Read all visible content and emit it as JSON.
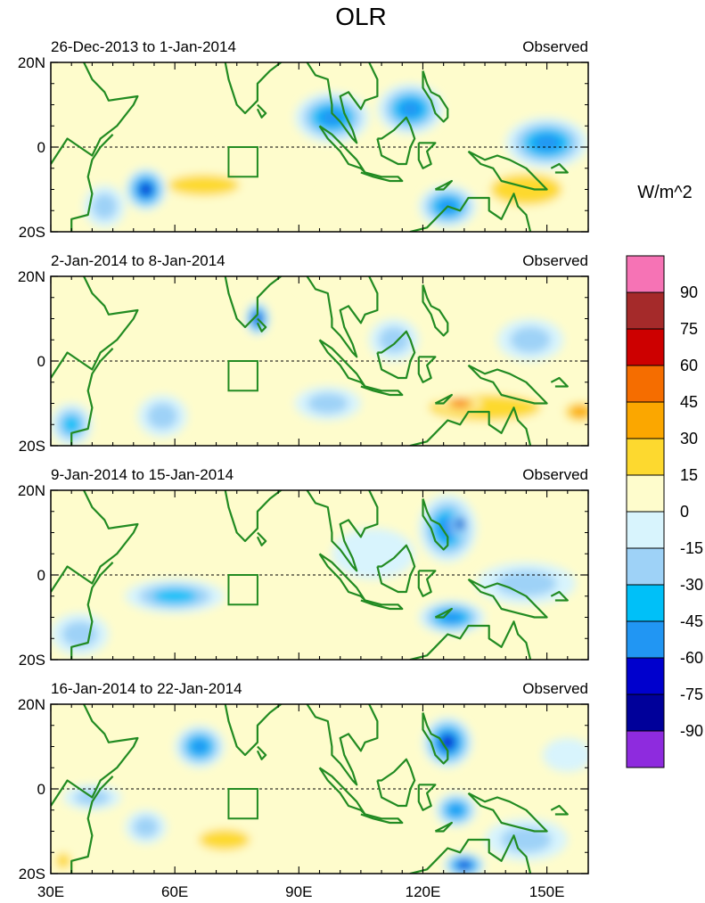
{
  "chart_data": {
    "type": "heatmap",
    "title": "OLR",
    "units_label": "W/m^2",
    "lon_range": [
      30,
      160
    ],
    "lat_range": [
      -20,
      20
    ],
    "x_ticks": [
      {
        "value": 30,
        "label": "30E"
      },
      {
        "value": 60,
        "label": "60E"
      },
      {
        "value": 90,
        "label": "90E"
      },
      {
        "value": 120,
        "label": "120E"
      },
      {
        "value": 150,
        "label": "150E"
      }
    ],
    "y_ticks": [
      {
        "value": 20,
        "label": "20N"
      },
      {
        "value": 0,
        "label": "0"
      },
      {
        "value": -20,
        "label": "20S"
      }
    ],
    "colorbar": {
      "levels": [
        "90",
        "75",
        "60",
        "45",
        "30",
        "15",
        "0",
        "-15",
        "-30",
        "-45",
        "-60",
        "-75",
        "-90"
      ],
      "colors": [
        "#f673b5",
        "#a52a2a",
        "#cd0000",
        "#f56d00",
        "#fba700",
        "#fdd92f",
        "#fefccc",
        "#d8f4fd",
        "#9ed2f7",
        "#00c0f8",
        "#2196f3",
        "#0000cd",
        "#00009a",
        "#8e2bde"
      ]
    },
    "box_region": {
      "lon": [
        73,
        80
      ],
      "lat": [
        -7,
        0
      ]
    },
    "panels": [
      {
        "period": "26-Dec-2013 to 1-Jan-2014",
        "tag": "Observed",
        "anomalies": [
          {
            "lon": 53,
            "lat": -10,
            "rx": 5,
            "ry": 5,
            "value": -75
          },
          {
            "lon": 43,
            "lat": -14,
            "rx": 5,
            "ry": 5,
            "value": -30
          },
          {
            "lon": 67,
            "lat": -9,
            "rx": 14,
            "ry": 4,
            "value": 30
          },
          {
            "lon": 83,
            "lat": -7,
            "rx": 9,
            "ry": 3,
            "value": 15
          },
          {
            "lon": 75,
            "lat": 8,
            "rx": 5,
            "ry": 5,
            "value": 15
          },
          {
            "lon": 98,
            "lat": 7,
            "rx": 9,
            "ry": 6,
            "value": -60
          },
          {
            "lon": 117,
            "lat": 9,
            "rx": 8,
            "ry": 6,
            "value": -60
          },
          {
            "lon": 126,
            "lat": -14,
            "rx": 7,
            "ry": 5,
            "value": -60
          },
          {
            "lon": 145,
            "lat": -10,
            "rx": 14,
            "ry": 6,
            "value": 30
          },
          {
            "lon": 150,
            "lat": 1,
            "rx": 10,
            "ry": 6,
            "value": -60
          },
          {
            "lon": 156,
            "lat": 12,
            "rx": 5,
            "ry": 3,
            "value": 15
          }
        ]
      },
      {
        "period": "2-Jan-2014 to 8-Jan-2014",
        "tag": "Observed",
        "anomalies": [
          {
            "lon": 80,
            "lat": 10,
            "rx": 3,
            "ry": 4,
            "value": -75
          },
          {
            "lon": 68,
            "lat": 5,
            "rx": 10,
            "ry": 4,
            "value": 15
          },
          {
            "lon": 78,
            "lat": -8,
            "rx": 14,
            "ry": 4,
            "value": 15
          },
          {
            "lon": 44,
            "lat": -6,
            "rx": 6,
            "ry": 4,
            "value": 15
          },
          {
            "lon": 57,
            "lat": -13,
            "rx": 6,
            "ry": 5,
            "value": -30
          },
          {
            "lon": 35,
            "lat": -15,
            "rx": 5,
            "ry": 5,
            "value": -45
          },
          {
            "lon": 97,
            "lat": -10,
            "rx": 8,
            "ry": 4,
            "value": -30
          },
          {
            "lon": 135,
            "lat": -11,
            "rx": 22,
            "ry": 5,
            "value": 30
          },
          {
            "lon": 129,
            "lat": -10,
            "rx": 5,
            "ry": 2,
            "value": 60
          },
          {
            "lon": 158,
            "lat": -12,
            "rx": 5,
            "ry": 3,
            "value": 45
          },
          {
            "lon": 113,
            "lat": 5,
            "rx": 6,
            "ry": 5,
            "value": -30
          },
          {
            "lon": 146,
            "lat": 5,
            "rx": 8,
            "ry": 5,
            "value": -30
          },
          {
            "lon": 115,
            "lat": 18,
            "rx": 25,
            "ry": 3,
            "value": 15
          }
        ]
      },
      {
        "period": "9-Jan-2014 to 15-Jan-2014",
        "tag": "Observed",
        "anomalies": [
          {
            "lon": 126,
            "lat": 11,
            "rx": 7,
            "ry": 8,
            "value": -60
          },
          {
            "lon": 129,
            "lat": 12,
            "rx": 2,
            "ry": 3,
            "value": -90
          },
          {
            "lon": 60,
            "lat": -5,
            "rx": 12,
            "ry": 4,
            "value": -45
          },
          {
            "lon": 37,
            "lat": -14,
            "rx": 7,
            "ry": 5,
            "value": -30
          },
          {
            "lon": 85,
            "lat": -8,
            "rx": 22,
            "ry": 4,
            "value": 15
          },
          {
            "lon": 75,
            "lat": 2,
            "rx": 6,
            "ry": 3,
            "value": 15
          },
          {
            "lon": 127,
            "lat": -10,
            "rx": 8,
            "ry": 4,
            "value": -60
          },
          {
            "lon": 145,
            "lat": -2,
            "rx": 12,
            "ry": 5,
            "value": -30
          },
          {
            "lon": 155,
            "lat": -16,
            "rx": 6,
            "ry": 3,
            "value": 15
          },
          {
            "lon": 108,
            "lat": 5,
            "rx": 10,
            "ry": 6,
            "value": -15
          }
        ]
      },
      {
        "period": "16-Jan-2014 to 22-Jan-2014",
        "tag": "Observed",
        "anomalies": [
          {
            "lon": 66,
            "lat": 10,
            "rx": 6,
            "ry": 5,
            "value": -60
          },
          {
            "lon": 126,
            "lat": 11,
            "rx": 6,
            "ry": 6,
            "value": -75
          },
          {
            "lon": 72,
            "lat": -12,
            "rx": 10,
            "ry": 4,
            "value": 30
          },
          {
            "lon": 86,
            "lat": -10,
            "rx": 12,
            "ry": 4,
            "value": 15
          },
          {
            "lon": 53,
            "lat": -9,
            "rx": 5,
            "ry": 4,
            "value": -30
          },
          {
            "lon": 40,
            "lat": -2,
            "rx": 7,
            "ry": 3,
            "value": -30
          },
          {
            "lon": 128,
            "lat": -5,
            "rx": 5,
            "ry": 4,
            "value": -60
          },
          {
            "lon": 130,
            "lat": -18,
            "rx": 5,
            "ry": 3,
            "value": -75
          },
          {
            "lon": 145,
            "lat": -12,
            "rx": 10,
            "ry": 5,
            "value": -30
          },
          {
            "lon": 33,
            "lat": -17,
            "rx": 3,
            "ry": 3,
            "value": 30
          },
          {
            "lon": 155,
            "lat": 8,
            "rx": 6,
            "ry": 4,
            "value": -15
          }
        ]
      }
    ]
  }
}
